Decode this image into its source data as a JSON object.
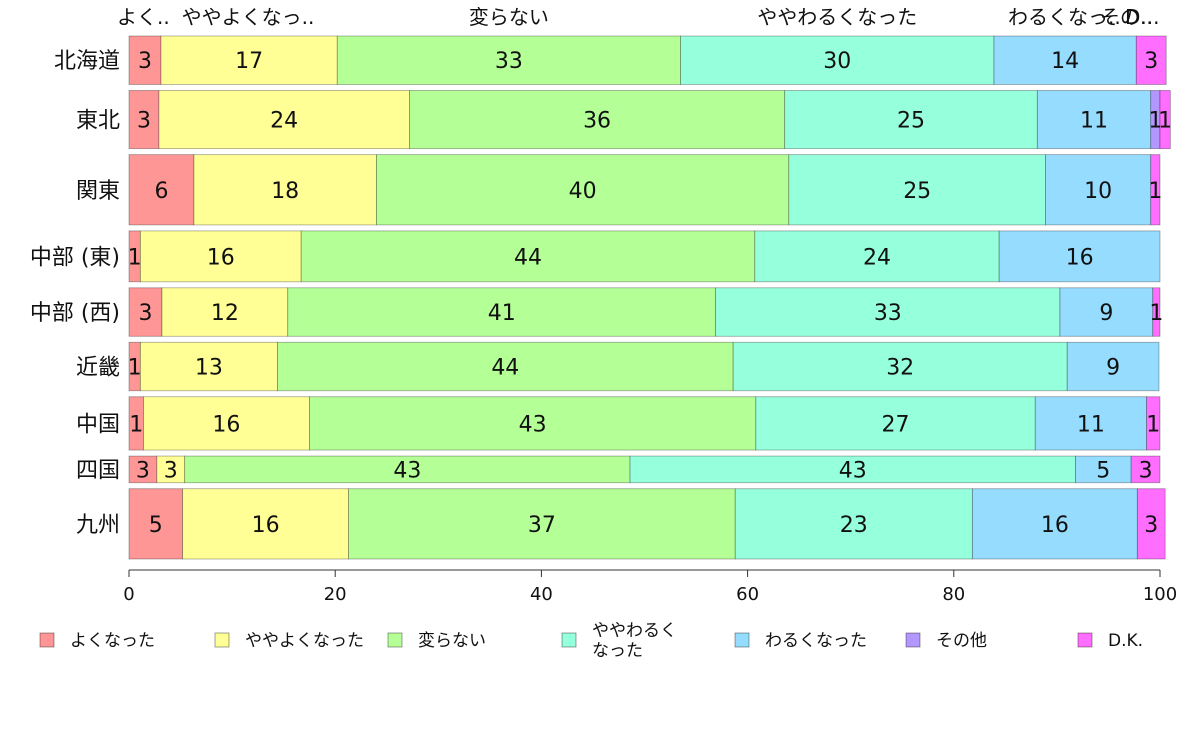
{
  "chart_data": {
    "type": "bar",
    "orientation": "horizontal",
    "stacked": true,
    "categories": [
      "北海道",
      "東北",
      "関東",
      "中部 (東)",
      "中部 (西)",
      "近畿",
      "中国",
      "四国",
      "九州"
    ],
    "category_weights": [
      1.0,
      1.2,
      1.45,
      1.05,
      1.0,
      1.0,
      1.1,
      0.55,
      1.45
    ],
    "series": [
      {
        "name": "よくなった",
        "color": "#ff9696",
        "values": [
          3.1,
          2.9,
          6.3,
          1.1,
          3.2,
          1.1,
          1.4,
          2.7,
          5.2
        ]
      },
      {
        "name": "ややよくなった",
        "color": "#ffff96",
        "values": [
          17.1,
          24.3,
          17.7,
          15.6,
          12.2,
          13.3,
          16.1,
          2.7,
          16.1
        ]
      },
      {
        "name": "変らない",
        "color": "#b4ff96",
        "values": [
          33.3,
          36.4,
          40.0,
          44.0,
          41.5,
          44.2,
          43.3,
          43.2,
          37.5
        ]
      },
      {
        "name": "ややわるくなった",
        "color": "#96ffdc",
        "values": [
          30.4,
          24.5,
          24.9,
          23.7,
          33.4,
          32.4,
          27.1,
          43.2,
          23.0
        ]
      },
      {
        "name": "わるくなった",
        "color": "#96dcff",
        "values": [
          13.8,
          11.0,
          10.2,
          15.6,
          9.0,
          8.9,
          10.8,
          5.4,
          16.0
        ]
      },
      {
        "name": "その他",
        "color": "#b496ff",
        "values": [
          0,
          0.9,
          0,
          0,
          0,
          0,
          0,
          0,
          0
        ]
      },
      {
        "name": "D.K.",
        "color": "#ff6eff",
        "values": [
          2.9,
          1.0,
          0.9,
          0,
          0.7,
          0,
          1.3,
          2.8,
          2.7
        ]
      }
    ],
    "value_labels": [
      [
        "3",
        "17",
        "33",
        "30",
        "14",
        "",
        "3"
      ],
      [
        "3",
        "24",
        "36",
        "25",
        "11",
        "1",
        "1"
      ],
      [
        "6",
        "18",
        "40",
        "25",
        "10",
        "",
        "1"
      ],
      [
        "1",
        "16",
        "44",
        "24",
        "16",
        "",
        ""
      ],
      [
        "3",
        "12",
        "41",
        "33",
        "9",
        "",
        "1"
      ],
      [
        "1",
        "13",
        "44",
        "32",
        "9",
        "",
        ""
      ],
      [
        "1",
        "16",
        "43",
        "27",
        "11",
        "",
        "1"
      ],
      [
        "3",
        "3",
        "43",
        "43",
        "5",
        "",
        "3"
      ],
      [
        "5",
        "16",
        "37",
        "23",
        "16",
        "",
        "3"
      ]
    ],
    "top_labels": [
      "よく..",
      "ややよくなっ..",
      "変らない",
      "ややわるくなった",
      "わるくなっ..",
      "その..",
      "D..."
    ],
    "xlim": [
      0,
      100
    ],
    "xticks": [
      0,
      20,
      40,
      60,
      80,
      100
    ],
    "legend": {
      "position": "bottom",
      "entries": [
        "よくなった",
        "ややよくなった",
        "変らない",
        "ややわるく\nなった",
        "わるくなった",
        "その他",
        "D.K."
      ]
    }
  }
}
